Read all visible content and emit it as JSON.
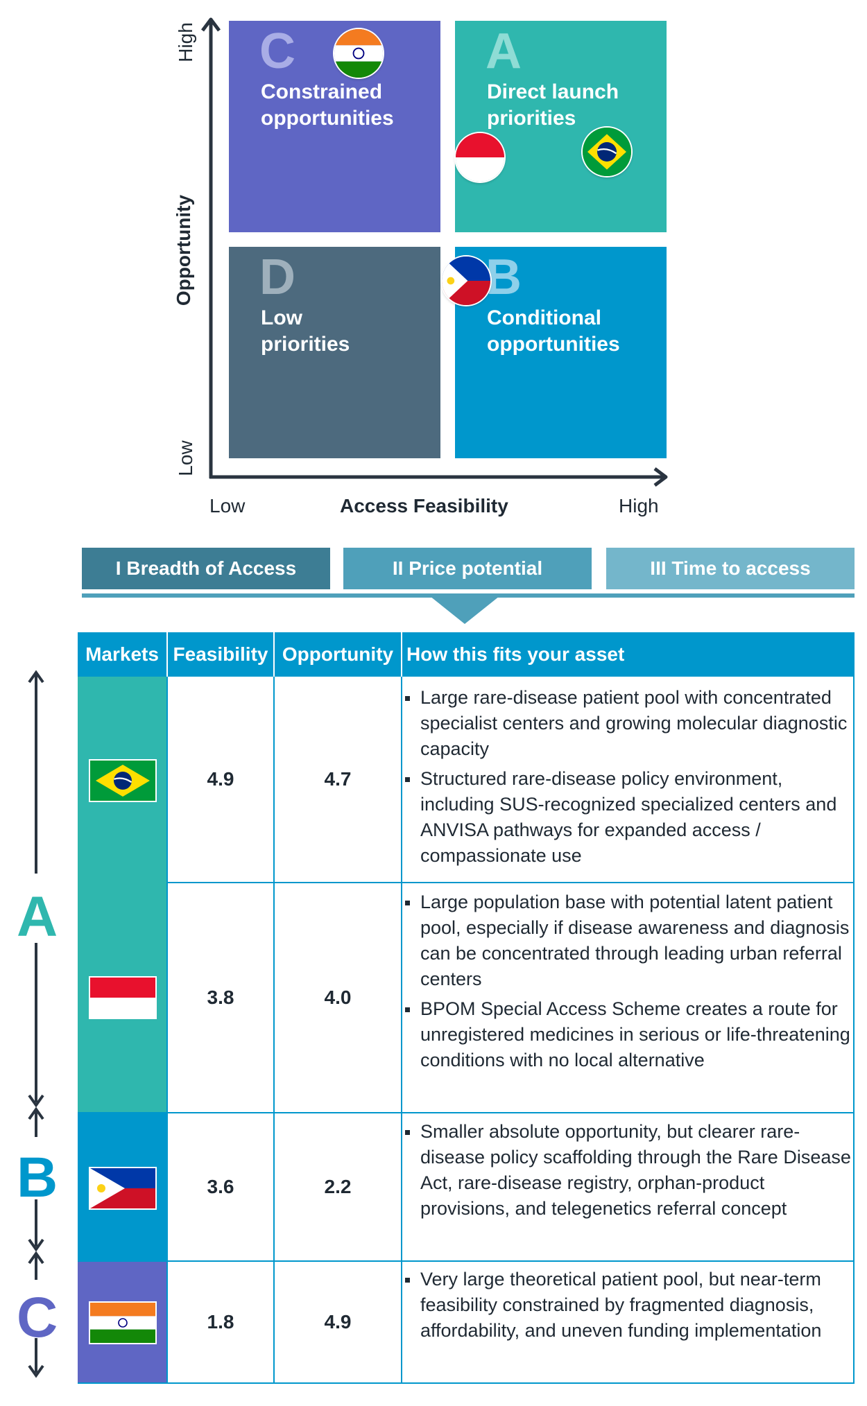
{
  "matrix": {
    "y_axis": {
      "title": "Opportunity",
      "low": "Low",
      "high": "High"
    },
    "x_axis": {
      "title": "Access Feasibility",
      "low": "Low",
      "high": "High"
    },
    "quadrants": [
      {
        "id": "C",
        "letter": "C",
        "label": "Constrained\nopportunities",
        "color": "#5f66c4"
      },
      {
        "id": "A",
        "letter": "A",
        "label": "Direct launch\npriorities",
        "color": "#2fb7ae"
      },
      {
        "id": "D",
        "letter": "D",
        "label": "Low\npriorities",
        "color": "#4d6a7e"
      },
      {
        "id": "B",
        "letter": "B",
        "label": "Conditional\nopportunities",
        "color": "#0097cc"
      }
    ],
    "markers": [
      {
        "country": "India",
        "icon": "india-flag-icon"
      },
      {
        "country": "Indonesia",
        "icon": "indonesia-flag-icon"
      },
      {
        "country": "Brazil",
        "icon": "brazil-flag-icon"
      },
      {
        "country": "Philippines",
        "icon": "philippines-flag-icon"
      }
    ]
  },
  "tabs": [
    {
      "label": "I Breadth of Access",
      "color": "#3d7d94"
    },
    {
      "label": "II Price potential",
      "color": "#4fa0ba"
    },
    {
      "label": "III Time to access",
      "color": "#74b6cb"
    }
  ],
  "table": {
    "headers": [
      "Markets",
      "Feasibility",
      "Opportunity",
      "How this fits your asset"
    ],
    "groups": [
      {
        "letter": "A",
        "color": "#2fb7ae"
      },
      {
        "letter": "B",
        "color": "#0097cc"
      },
      {
        "letter": "C",
        "color": "#5f66c4"
      }
    ],
    "rows": [
      {
        "country": "Brazil",
        "icon": "brazil-flag-icon",
        "group": "A",
        "feasibility": "4.9",
        "opportunity": "4.7",
        "bullets": [
          "Large rare-disease patient pool with concentrated specialist centers and growing molecular diagnostic capacity",
          "Structured rare-disease policy environment, including SUS-recognized specialized centers and ANVISA pathways for expanded access / compassionate use"
        ]
      },
      {
        "country": "Indonesia",
        "icon": "indonesia-flag-icon",
        "group": "A",
        "feasibility": "3.8",
        "opportunity": "4.0",
        "bullets": [
          "Large population base with potential latent patient pool, especially if disease awareness and diagnosis can be concentrated through leading urban referral centers",
          "BPOM Special Access Scheme creates a route for unregistered medicines in serious or life-threatening conditions with no local alternative"
        ]
      },
      {
        "country": "Philippines",
        "icon": "philippines-flag-icon",
        "group": "B",
        "feasibility": "3.6",
        "opportunity": "2.2",
        "bullets": [
          "Smaller absolute opportunity, but clearer rare-disease policy scaffolding through the Rare Disease Act, rare-disease registry, orphan-product provisions, and telegenetics referral concept"
        ]
      },
      {
        "country": "India",
        "icon": "india-flag-icon",
        "group": "C",
        "feasibility": "1.8",
        "opportunity": "4.9",
        "bullets": [
          "Very large theoretical patient pool, but near-term feasibility constrained by fragmented diagnosis, affordability, and uneven funding implementation"
        ]
      }
    ]
  },
  "colors": {
    "axis": "#2a3440",
    "header": "#0097cc",
    "border": "#0097cc"
  }
}
